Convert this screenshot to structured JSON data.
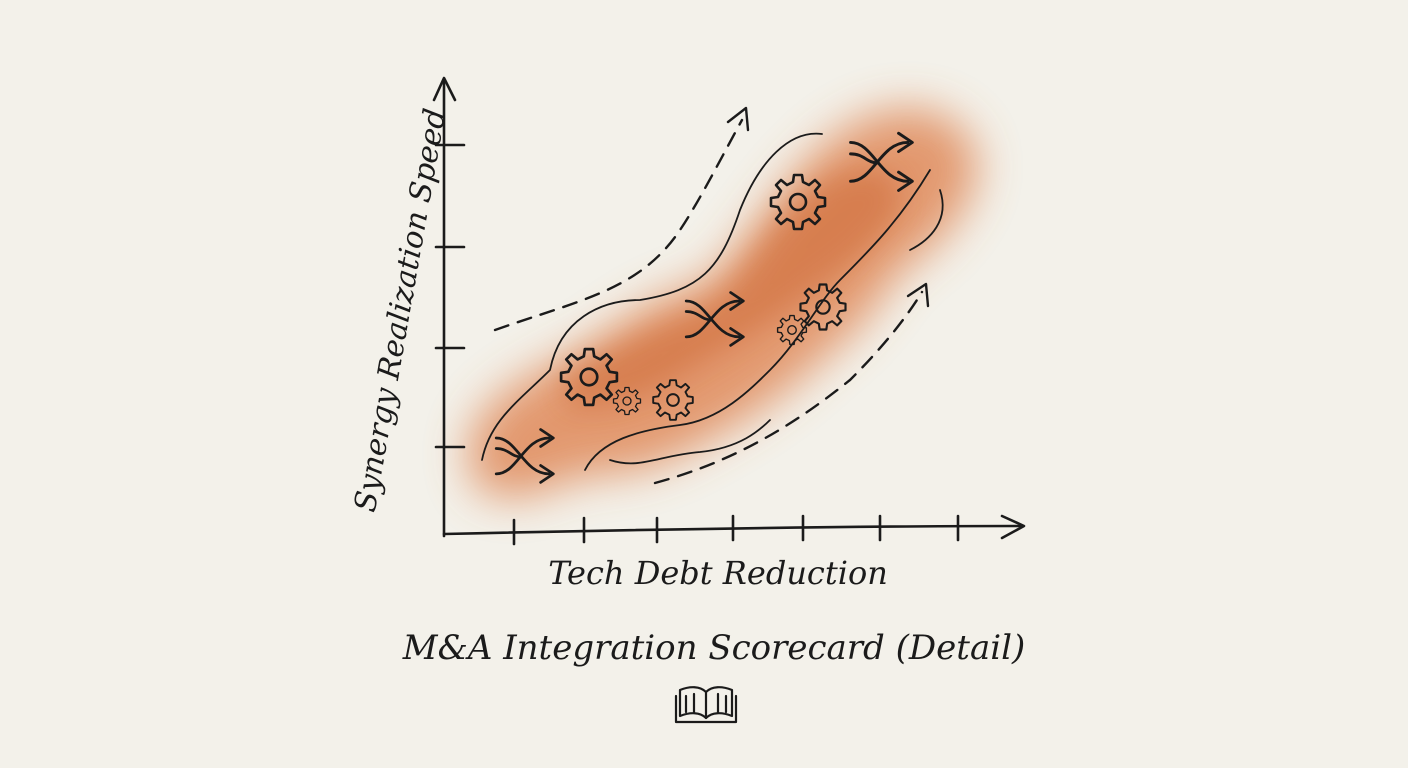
{
  "diagram": {
    "title": "M&A Integration Scorecard (Detail)",
    "x_axis_label": "Tech Debt Reduction",
    "y_axis_label": "Synergy Realization Speed",
    "accent_color": "#d9743f",
    "ink_color": "#1b1b1b",
    "background_color": "#f3f1ea",
    "icons": [
      "gear-icon",
      "shuffle-arrows-icon",
      "open-book-icon"
    ]
  }
}
